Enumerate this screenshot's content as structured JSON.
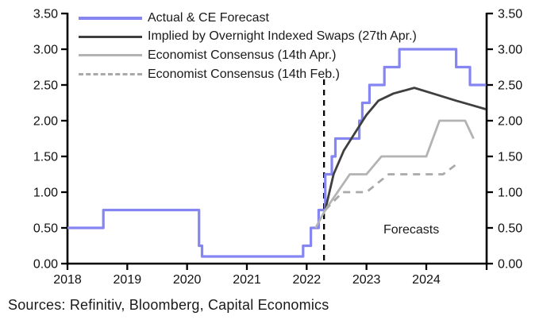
{
  "chart_data": {
    "type": "line",
    "title": "",
    "xlabel": "",
    "ylabel": "",
    "annotation": "Forecasts",
    "axis_color": "#000000",
    "x_axis": {
      "range": [
        2018,
        2025.0
      ],
      "tick_values": [
        2018,
        2019,
        2020,
        2021,
        2022,
        2023,
        2024
      ],
      "tick_labels": [
        "2018",
        "2019",
        "2020",
        "2021",
        "2022",
        "2023",
        "2024"
      ]
    },
    "y_axis": {
      "range": [
        0.0,
        3.5
      ],
      "sides": "both",
      "tick_values": [
        0.0,
        0.5,
        1.0,
        1.5,
        2.0,
        2.5,
        3.0,
        3.5
      ],
      "tick_labels": [
        "0.00",
        "0.50",
        "1.00",
        "1.50",
        "2.00",
        "2.50",
        "3.00",
        "3.50"
      ]
    },
    "forecast_divider": {
      "x": 2022.29,
      "y_top": 0.92,
      "style": "dashed",
      "color": "#000000"
    },
    "legend_position": "top-left",
    "series": [
      {
        "id": "actual_ce_forecast",
        "name": "Actual & CE Forecast",
        "color": "#8586F2",
        "style": "solid",
        "stroke_width": 3.2,
        "points": [
          [
            2018.0,
            0.5
          ],
          [
            2018.6,
            0.5
          ],
          [
            2018.6,
            0.75
          ],
          [
            2020.2,
            0.75
          ],
          [
            2020.2,
            0.25
          ],
          [
            2020.25,
            0.25
          ],
          [
            2020.25,
            0.1
          ],
          [
            2021.94,
            0.1
          ],
          [
            2021.94,
            0.25
          ],
          [
            2022.07,
            0.25
          ],
          [
            2022.07,
            0.5
          ],
          [
            2022.2,
            0.5
          ],
          [
            2022.2,
            0.75
          ],
          [
            2022.31,
            0.75
          ],
          [
            2022.31,
            1.25
          ],
          [
            2022.42,
            1.25
          ],
          [
            2022.42,
            1.5
          ],
          [
            2022.48,
            1.5
          ],
          [
            2022.48,
            1.75
          ],
          [
            2022.88,
            1.75
          ],
          [
            2022.88,
            2.0
          ],
          [
            2022.93,
            2.0
          ],
          [
            2022.93,
            2.25
          ],
          [
            2023.05,
            2.25
          ],
          [
            2023.05,
            2.5
          ],
          [
            2023.3,
            2.5
          ],
          [
            2023.3,
            2.75
          ],
          [
            2023.55,
            2.75
          ],
          [
            2023.55,
            3.0
          ],
          [
            2024.5,
            3.0
          ],
          [
            2024.5,
            2.75
          ],
          [
            2024.73,
            2.75
          ],
          [
            2024.73,
            2.5
          ],
          [
            2025.0,
            2.5
          ]
        ]
      },
      {
        "id": "ois_implied",
        "name": "Implied by Overnight Indexed Swaps (27th Apr.)",
        "color": "#3F3F3F",
        "style": "solid",
        "stroke_width": 2.8,
        "points": [
          [
            2022.31,
            0.75
          ],
          [
            2022.45,
            1.25
          ],
          [
            2022.62,
            1.58
          ],
          [
            2022.8,
            1.82
          ],
          [
            2023.0,
            2.08
          ],
          [
            2023.2,
            2.28
          ],
          [
            2023.45,
            2.38
          ],
          [
            2023.8,
            2.46
          ],
          [
            2024.15,
            2.37
          ],
          [
            2024.5,
            2.28
          ],
          [
            2024.75,
            2.22
          ],
          [
            2025.0,
            2.16
          ]
        ]
      },
      {
        "id": "consensus_apr",
        "name": "Economist Consensus (14th Apr.)",
        "color": "#B3B3B3",
        "style": "solid",
        "stroke_width": 2.8,
        "points": [
          [
            2022.15,
            0.5
          ],
          [
            2022.31,
            0.75
          ],
          [
            2022.72,
            1.25
          ],
          [
            2023.0,
            1.25
          ],
          [
            2023.25,
            1.5
          ],
          [
            2024.0,
            1.5
          ],
          [
            2024.22,
            2.0
          ],
          [
            2024.65,
            2.0
          ],
          [
            2024.79,
            1.75
          ]
        ]
      },
      {
        "id": "consensus_feb",
        "name": "Economist Consensus (14th Feb.)",
        "color": "#A9A9A9",
        "style": "dashed",
        "stroke_width": 2.8,
        "points": [
          [
            2022.31,
            0.75
          ],
          [
            2022.6,
            1.0
          ],
          [
            2023.0,
            1.0
          ],
          [
            2023.37,
            1.25
          ],
          [
            2024.28,
            1.25
          ],
          [
            2024.52,
            1.4
          ]
        ]
      }
    ]
  },
  "footer": {
    "sources": "Sources: Refinitiv, Bloomberg, Capital Economics"
  }
}
